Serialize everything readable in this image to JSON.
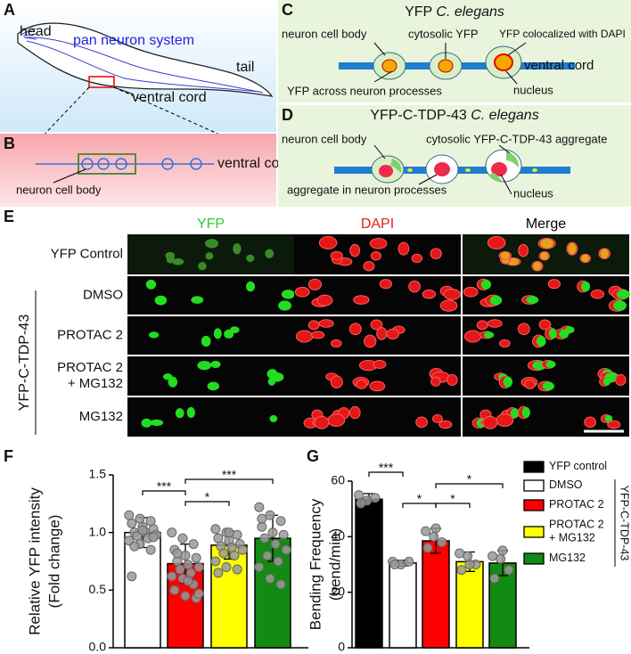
{
  "panel_labels": [
    "A",
    "B",
    "C",
    "D",
    "E",
    "F",
    "G"
  ],
  "panel_a": {
    "head": "head",
    "system": "pan neuron system",
    "tail": "tail",
    "cord": "ventral cord"
  },
  "panel_b": {
    "cord": "ventral cord",
    "cell": "neuron cell body"
  },
  "panel_c": {
    "title_prefix": "YFP",
    "title_species": "C. elegans",
    "cell": "neuron cell body",
    "cytosolic": "cytosolic YFP",
    "coloc": "YFP colocalized with DAPI",
    "cord": "ventral cord",
    "processes": "YFP across neuron processes",
    "nucleus": "nucleus"
  },
  "panel_d": {
    "title_prefix": "YFP-C-TDP-43",
    "title_species": "C. elegans",
    "cell": "neuron cell body",
    "cytosolic": "cytosolic YFP-C-TDP-43 aggregate",
    "processes": "aggregate in neuron processes",
    "nucleus": "nucleus"
  },
  "panel_e": {
    "columns": [
      "YFP",
      "DAPI",
      "Merge"
    ],
    "rows": [
      [
        "YFP Control"
      ],
      [
        "DMSO"
      ],
      [
        "PROTAC 2"
      ],
      [
        "PROTAC 2",
        "+ MG132"
      ],
      [
        "MG132"
      ]
    ],
    "group": "YFP-C-TDP-43"
  },
  "chart_data": [
    {
      "type": "bar",
      "ylabel": [
        "Relative YFP intensity",
        "(Fold change)"
      ],
      "values": [
        1.0,
        0.73,
        0.89,
        0.95
      ],
      "errors": [
        0.13,
        0.17,
        0.12,
        0.2
      ],
      "colors": [
        "#ffffff",
        "#ff0000",
        "#ffff00",
        "#138a13"
      ],
      "points": [
        [
          1.15,
          1.12,
          1.1,
          1.08,
          1.05,
          1.03,
          1.0,
          1.0,
          0.98,
          0.97,
          0.95,
          0.93,
          0.9,
          0.85,
          0.62,
          1.02,
          0.96,
          0.88
        ],
        [
          1.0,
          0.95,
          0.9,
          0.85,
          0.8,
          0.78,
          0.75,
          0.72,
          0.7,
          0.68,
          0.65,
          0.62,
          0.6,
          0.55,
          0.5,
          0.45,
          0.43,
          0.82,
          0.58,
          0.47
        ],
        [
          1.03,
          1.0,
          0.98,
          0.95,
          0.93,
          0.9,
          0.88,
          0.87,
          0.85,
          0.82,
          0.8,
          0.75,
          0.7,
          0.68,
          0.65,
          1.0
        ],
        [
          1.22,
          1.15,
          1.1,
          1.05,
          1.0,
          0.98,
          0.95,
          0.9,
          0.85,
          0.8,
          0.75,
          0.7,
          0.6,
          0.55,
          1.12
        ]
      ],
      "ylim": [
        0,
        1.5
      ],
      "yticks": [
        {
          "value": 0,
          "label": "0.0"
        },
        0.5,
        {
          "value": 1,
          "label": "1.0"
        },
        1.5
      ],
      "significance": [
        {
          "label": "***",
          "between": [
            0,
            1
          ]
        },
        {
          "label": "*",
          "between": [
            1,
            2
          ]
        },
        {
          "label": "***",
          "between": [
            1,
            3
          ]
        }
      ]
    },
    {
      "type": "bar",
      "ylabel": [
        "Bending Frequency",
        "(bend/min)"
      ],
      "categories": [
        [
          "YFP control"
        ],
        [
          "DMSO"
        ],
        [
          "PROTAC 2"
        ],
        [
          "PROTAC 2",
          "+ MG132"
        ],
        [
          "MG132"
        ]
      ],
      "legend_group": "YFP-C-TDP-43",
      "values": [
        53.5,
        30.5,
        38.5,
        31,
        30.5
      ],
      "errors": [
        2,
        1,
        4.5,
        3.5,
        4.5
      ],
      "colors": [
        "#000000",
        "#ffffff",
        "#ff0000",
        "#ffff00",
        "#138a13"
      ],
      "points": [
        [
          55,
          53,
          54,
          52
        ],
        [
          31,
          30,
          31,
          30
        ],
        [
          42,
          40,
          38,
          36,
          43
        ],
        [
          34,
          33,
          30,
          28,
          30
        ],
        [
          33,
          32,
          28,
          25,
          35
        ]
      ],
      "ylim": [
        0,
        60
      ],
      "yticks": [
        0,
        20,
        40,
        60
      ],
      "significance": [
        {
          "label": "***",
          "between": [
            0,
            1
          ]
        },
        {
          "label": "*",
          "between": [
            1,
            2
          ]
        },
        {
          "label": "*",
          "between": [
            2,
            3
          ]
        },
        {
          "label": "*",
          "between": [
            2,
            4
          ]
        }
      ]
    }
  ]
}
